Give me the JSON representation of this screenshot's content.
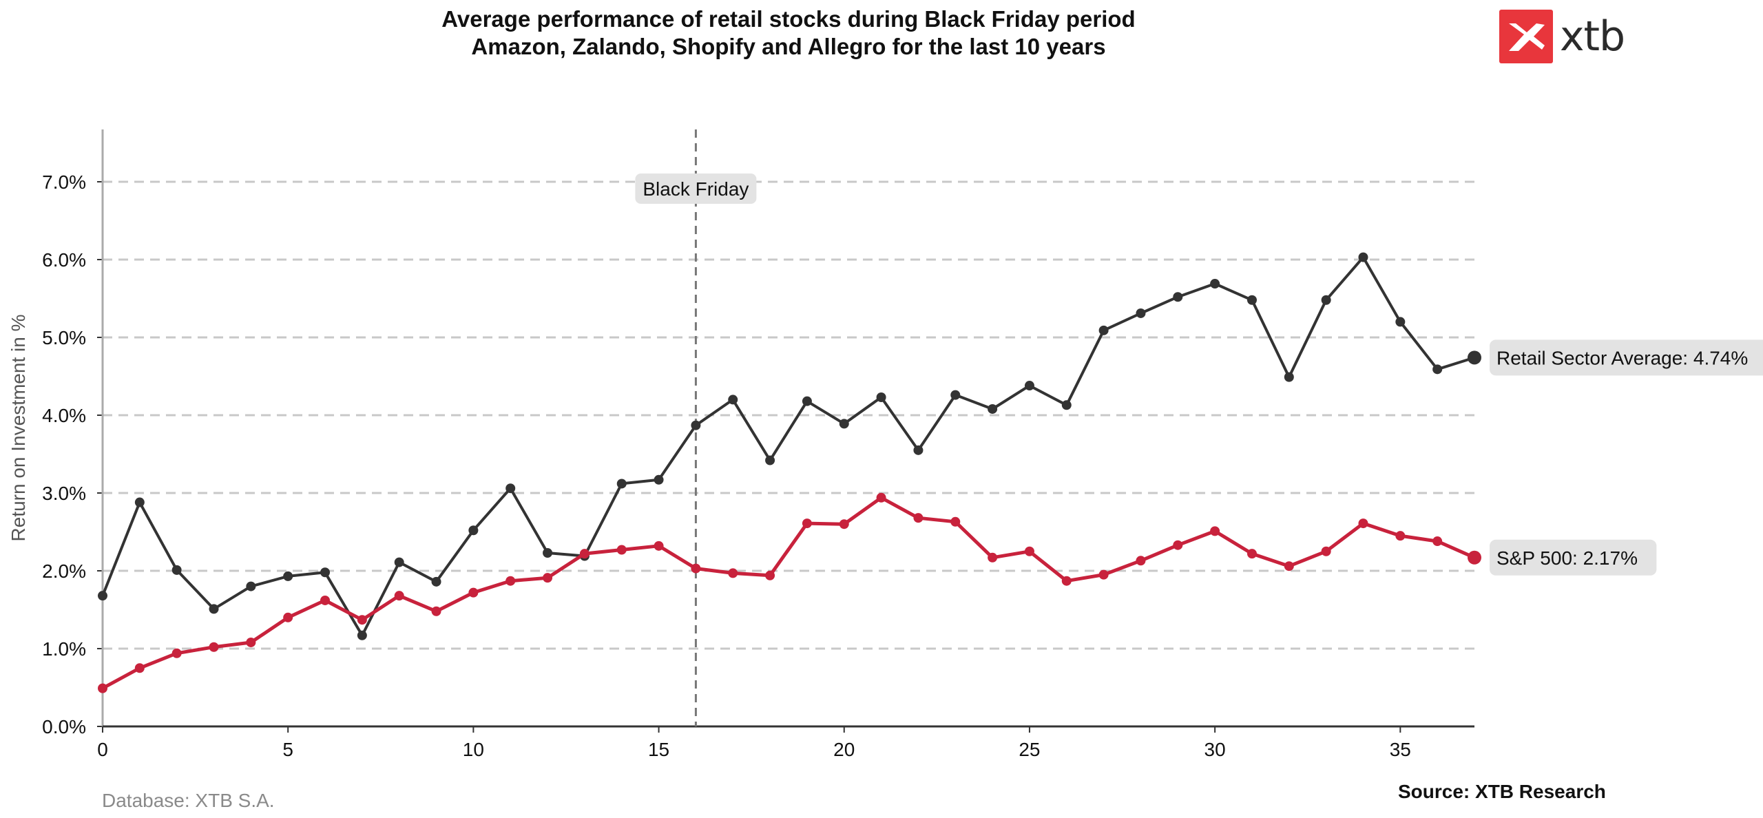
{
  "header": {
    "title_line1": "Average performance of retail stocks during Black Friday period",
    "title_line2": "Amazon, Zalando, Shopify and Allegro for the last 10 years"
  },
  "logo": {
    "text": "xtb",
    "color": "#e8363c"
  },
  "footer": {
    "database": "Database: XTB S.A.",
    "source": "Source: XTB Research"
  },
  "chart_data": {
    "type": "line",
    "title": "Average performance of retail stocks during Black Friday period",
    "subtitle": "Amazon, Zalando, Shopify and Allegro for the last 10 years",
    "xlabel": "",
    "ylabel": "Return on Investment in %",
    "xlim": [
      0,
      37
    ],
    "ylim": [
      0,
      7.5
    ],
    "x_ticks": [
      0,
      5,
      10,
      15,
      20,
      25,
      30,
      35
    ],
    "y_ticks": [
      0,
      1,
      2,
      3,
      4,
      5,
      6,
      7
    ],
    "y_tick_labels": [
      "0.0%",
      "1.0%",
      "2.0%",
      "3.0%",
      "4.0%",
      "5.0%",
      "6.0%",
      "7.0%"
    ],
    "grid": "horizontal dashed",
    "annotation": {
      "label": "Black Friday",
      "x": 16
    },
    "x": [
      0,
      1,
      2,
      3,
      4,
      5,
      6,
      7,
      8,
      9,
      10,
      11,
      12,
      13,
      14,
      15,
      16,
      17,
      18,
      19,
      20,
      21,
      22,
      23,
      24,
      25,
      26,
      27,
      28,
      29,
      30,
      31,
      32,
      33,
      34,
      35,
      36,
      37
    ],
    "series": [
      {
        "name": "Retail Sector Average",
        "end_label": "Retail Sector Average: 4.74%",
        "color": "#333333",
        "values": [
          1.68,
          2.88,
          2.01,
          1.51,
          1.8,
          1.93,
          1.98,
          1.17,
          2.11,
          1.86,
          2.52,
          3.06,
          2.23,
          2.19,
          3.12,
          3.17,
          3.87,
          4.2,
          3.42,
          4.18,
          3.89,
          4.23,
          3.55,
          4.26,
          4.08,
          4.38,
          4.13,
          5.09,
          5.31,
          5.52,
          5.69,
          5.48,
          4.49,
          5.48,
          6.03,
          5.2,
          4.59,
          4.74
        ]
      },
      {
        "name": "S&P 500",
        "end_label": "S&P 500: 2.17%",
        "color": "#c8223c",
        "values": [
          0.49,
          0.75,
          0.94,
          1.02,
          1.08,
          1.4,
          1.62,
          1.37,
          1.68,
          1.48,
          1.72,
          1.87,
          1.91,
          2.22,
          2.27,
          2.32,
          2.03,
          1.97,
          1.94,
          2.61,
          2.6,
          2.94,
          2.68,
          2.63,
          2.17,
          2.25,
          1.87,
          1.95,
          2.13,
          2.33,
          2.51,
          2.22,
          2.06,
          2.25,
          2.61,
          2.45,
          2.38,
          2.17
        ]
      }
    ]
  }
}
